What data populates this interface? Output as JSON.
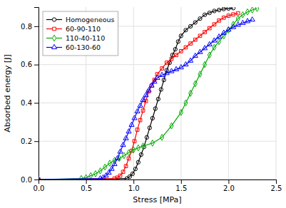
{
  "chart_data": {
    "type": "line",
    "xlabel": "Stress [MPa]",
    "ylabel": "Absorbed energy [J]",
    "xlim": [
      0,
      2.5
    ],
    "ylim": [
      0,
      0.9
    ],
    "xticks": [
      {
        "value": 0,
        "label": "0.0"
      },
      0.5,
      {
        "value": 1.0,
        "label": "1.0"
      },
      1.5,
      {
        "value": 2.0,
        "label": "2.0"
      },
      2.5
    ],
    "yticks": [
      {
        "value": 0,
        "label": "0.0"
      },
      0.2,
      0.4,
      0.6,
      0.8
    ],
    "grid": true,
    "legend": "upper left",
    "series": [
      {
        "name": "Homogeneous",
        "color": "#000000",
        "marker": "circle",
        "x": [
          0.0,
          0.93,
          0.96,
          0.99,
          1.02,
          1.05,
          1.08,
          1.11,
          1.14,
          1.17,
          1.2,
          1.23,
          1.26,
          1.29,
          1.32,
          1.35,
          1.38,
          1.41,
          1.44,
          1.47,
          1.5,
          1.55,
          1.6,
          1.65,
          1.7,
          1.75,
          1.8,
          1.85,
          1.9,
          1.95,
          2.0,
          2.05
        ],
        "values": [
          0.0,
          0.005,
          0.015,
          0.03,
          0.055,
          0.09,
          0.13,
          0.17,
          0.22,
          0.27,
          0.32,
          0.37,
          0.42,
          0.47,
          0.52,
          0.57,
          0.61,
          0.65,
          0.68,
          0.72,
          0.75,
          0.78,
          0.8,
          0.82,
          0.84,
          0.86,
          0.87,
          0.88,
          0.885,
          0.89,
          0.893,
          0.895
        ]
      },
      {
        "name": "60-90-110",
        "color": "#ff0000",
        "marker": "square",
        "x": [
          0.0,
          0.8,
          0.83,
          0.86,
          0.89,
          0.92,
          0.95,
          0.98,
          1.01,
          1.04,
          1.07,
          1.1,
          1.13,
          1.16,
          1.19,
          1.22,
          1.25,
          1.3,
          1.35,
          1.4,
          1.45,
          1.5,
          1.55,
          1.6,
          1.65,
          1.7,
          1.75,
          1.8,
          1.85,
          1.9,
          1.95,
          2.0,
          2.05,
          2.1
        ],
        "values": [
          0.0,
          0.005,
          0.01,
          0.02,
          0.04,
          0.07,
          0.11,
          0.15,
          0.2,
          0.26,
          0.31,
          0.36,
          0.41,
          0.46,
          0.49,
          0.52,
          0.55,
          0.58,
          0.61,
          0.63,
          0.65,
          0.67,
          0.69,
          0.71,
          0.73,
          0.75,
          0.77,
          0.79,
          0.81,
          0.83,
          0.845,
          0.855,
          0.862,
          0.868
        ]
      },
      {
        "name": "110-40-110",
        "color": "#00aa00",
        "marker": "diamond",
        "x": [
          0.0,
          0.45,
          0.5,
          0.55,
          0.6,
          0.65,
          0.7,
          0.75,
          0.8,
          0.85,
          0.9,
          0.95,
          1.0,
          1.05,
          1.1,
          1.2,
          1.3,
          1.4,
          1.5,
          1.55,
          1.6,
          1.65,
          1.7,
          1.75,
          1.8,
          1.85,
          1.9,
          1.95,
          2.0,
          2.05,
          2.1,
          2.15,
          2.2,
          2.25,
          2.3
        ],
        "values": [
          0.0,
          0.005,
          0.01,
          0.02,
          0.03,
          0.045,
          0.065,
          0.085,
          0.1,
          0.11,
          0.125,
          0.14,
          0.155,
          0.165,
          0.175,
          0.19,
          0.22,
          0.28,
          0.35,
          0.4,
          0.45,
          0.5,
          0.55,
          0.6,
          0.65,
          0.69,
          0.72,
          0.75,
          0.78,
          0.81,
          0.84,
          0.86,
          0.875,
          0.885,
          0.893
        ]
      },
      {
        "name": "60-130-60",
        "color": "#0000ff",
        "marker": "triangle-up",
        "x": [
          0.0,
          0.65,
          0.68,
          0.71,
          0.74,
          0.77,
          0.8,
          0.83,
          0.86,
          0.89,
          0.92,
          0.95,
          0.98,
          1.01,
          1.04,
          1.07,
          1.1,
          1.13,
          1.16,
          1.19,
          1.22,
          1.25,
          1.3,
          1.35,
          1.4,
          1.45,
          1.5,
          1.55,
          1.6,
          1.65,
          1.7,
          1.75,
          1.8,
          1.85,
          1.9,
          1.95,
          2.0,
          2.05,
          2.1,
          2.15,
          2.2,
          2.25
        ],
        "values": [
          0.0,
          0.005,
          0.01,
          0.02,
          0.035,
          0.055,
          0.08,
          0.11,
          0.145,
          0.18,
          0.215,
          0.25,
          0.285,
          0.32,
          0.355,
          0.385,
          0.415,
          0.44,
          0.465,
          0.49,
          0.51,
          0.53,
          0.545,
          0.555,
          0.565,
          0.575,
          0.585,
          0.6,
          0.62,
          0.645,
          0.665,
          0.685,
          0.705,
          0.725,
          0.745,
          0.765,
          0.782,
          0.795,
          0.807,
          0.817,
          0.826,
          0.834
        ]
      }
    ]
  }
}
